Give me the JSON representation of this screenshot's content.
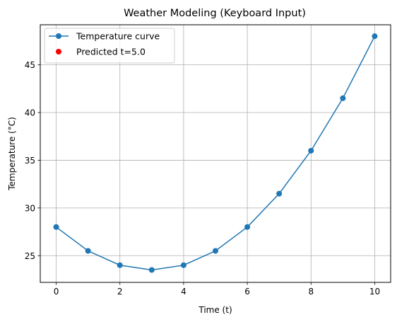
{
  "chart_data": {
    "type": "line",
    "title": "Weather Modeling (Keyboard Input)",
    "xlabel": "Time (t)",
    "ylabel": "Temperature (°C)",
    "xlim": [
      -0.5,
      10.5
    ],
    "ylim": [
      22.2,
      49.2
    ],
    "xticks": [
      0,
      2,
      4,
      6,
      8,
      10
    ],
    "yticks": [
      25,
      30,
      35,
      40,
      45
    ],
    "grid": true,
    "legend_position": "upper-left",
    "series": [
      {
        "name": "Temperature curve",
        "color": "#1f77b4",
        "marker": "circle",
        "x": [
          0,
          1,
          2,
          3,
          4,
          5,
          6,
          7,
          8,
          9,
          10
        ],
        "y": [
          28,
          25.5,
          24,
          23.5,
          24,
          25.5,
          28,
          31.5,
          36,
          41.5,
          48
        ]
      },
      {
        "name": "Predicted t=5.0",
        "color": "#ff0000",
        "marker": "scatter",
        "x": [],
        "y": []
      }
    ]
  }
}
